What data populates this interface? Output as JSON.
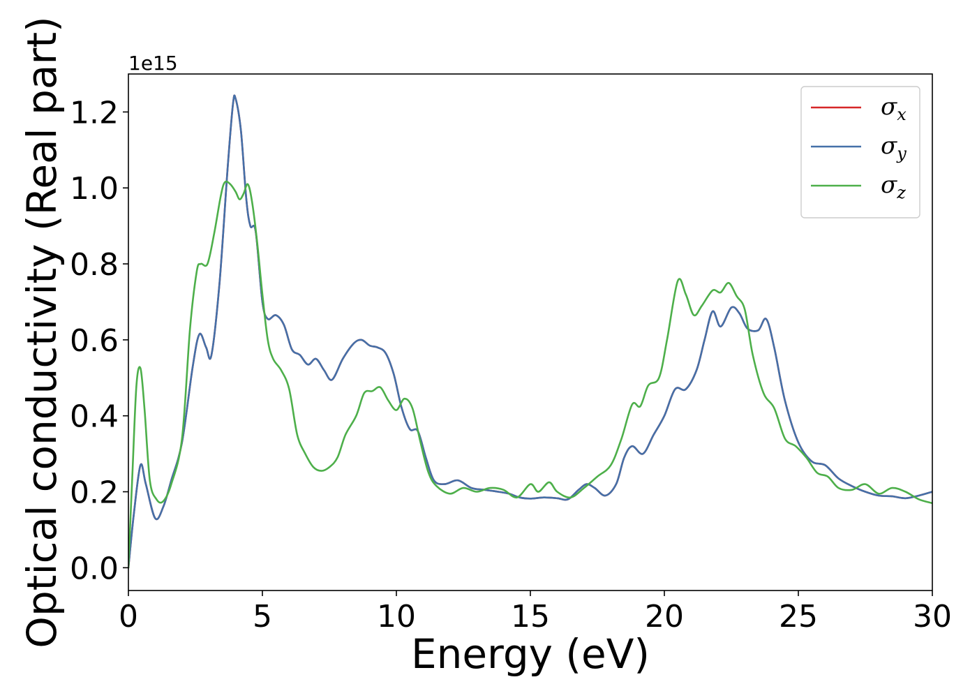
{
  "chart_data": {
    "type": "line",
    "title": "",
    "xlabel": "Energy (eV)",
    "ylabel": "Optical conductivity (Real part)",
    "y_offset_text": "1e15",
    "y_scale_factor": 1000000000000000.0,
    "xlim": [
      0,
      30
    ],
    "ylim": [
      -0.06,
      1.3
    ],
    "x_ticks": [
      0,
      5,
      10,
      15,
      20,
      25,
      30
    ],
    "y_ticks": [
      0.0,
      0.2,
      0.4,
      0.6,
      0.8,
      1.0,
      1.2
    ],
    "y_tick_labels": [
      "0.0",
      "0.2",
      "0.4",
      "0.6",
      "0.8",
      "1.0",
      "1.2"
    ],
    "grid": false,
    "legend_position": "top-right",
    "series": [
      {
        "name": "σx",
        "legend_symbol": "σ",
        "legend_subscript": "x",
        "color": "#d62728",
        "points": [
          [
            0,
            0
          ],
          [
            0.2,
            0.14
          ],
          [
            0.45,
            0.27
          ],
          [
            0.65,
            0.22
          ],
          [
            1.0,
            0.13
          ],
          [
            1.3,
            0.16
          ],
          [
            1.6,
            0.23
          ],
          [
            2.0,
            0.33
          ],
          [
            2.4,
            0.53
          ],
          [
            2.65,
            0.615
          ],
          [
            2.9,
            0.58
          ],
          [
            3.1,
            0.56
          ],
          [
            3.4,
            0.75
          ],
          [
            3.7,
            1.05
          ],
          [
            3.9,
            1.22
          ],
          [
            4.0,
            1.235
          ],
          [
            4.2,
            1.15
          ],
          [
            4.4,
            0.97
          ],
          [
            4.55,
            0.9
          ],
          [
            4.75,
            0.885
          ],
          [
            5.0,
            0.7
          ],
          [
            5.2,
            0.655
          ],
          [
            5.5,
            0.665
          ],
          [
            5.8,
            0.64
          ],
          [
            6.1,
            0.575
          ],
          [
            6.4,
            0.56
          ],
          [
            6.7,
            0.535
          ],
          [
            7.0,
            0.55
          ],
          [
            7.3,
            0.52
          ],
          [
            7.6,
            0.495
          ],
          [
            8.0,
            0.55
          ],
          [
            8.4,
            0.59
          ],
          [
            8.7,
            0.6
          ],
          [
            9.0,
            0.585
          ],
          [
            9.3,
            0.58
          ],
          [
            9.6,
            0.565
          ],
          [
            9.9,
            0.51
          ],
          [
            10.2,
            0.42
          ],
          [
            10.5,
            0.365
          ],
          [
            10.8,
            0.36
          ],
          [
            11.1,
            0.29
          ],
          [
            11.4,
            0.23
          ],
          [
            11.8,
            0.22
          ],
          [
            12.3,
            0.23
          ],
          [
            12.8,
            0.21
          ],
          [
            13.3,
            0.205
          ],
          [
            13.8,
            0.2
          ],
          [
            14.2,
            0.195
          ],
          [
            14.6,
            0.185
          ],
          [
            15.0,
            0.182
          ],
          [
            15.5,
            0.185
          ],
          [
            16.0,
            0.183
          ],
          [
            16.4,
            0.18
          ],
          [
            16.8,
            0.205
          ],
          [
            17.1,
            0.22
          ],
          [
            17.4,
            0.21
          ],
          [
            17.8,
            0.19
          ],
          [
            18.2,
            0.22
          ],
          [
            18.5,
            0.29
          ],
          [
            18.8,
            0.32
          ],
          [
            19.2,
            0.3
          ],
          [
            19.6,
            0.35
          ],
          [
            20.0,
            0.4
          ],
          [
            20.4,
            0.47
          ],
          [
            20.8,
            0.47
          ],
          [
            21.2,
            0.52
          ],
          [
            21.5,
            0.6
          ],
          [
            21.8,
            0.675
          ],
          [
            22.1,
            0.635
          ],
          [
            22.5,
            0.685
          ],
          [
            22.8,
            0.67
          ],
          [
            23.1,
            0.63
          ],
          [
            23.5,
            0.625
          ],
          [
            23.8,
            0.655
          ],
          [
            24.1,
            0.58
          ],
          [
            24.5,
            0.44
          ],
          [
            25.0,
            0.33
          ],
          [
            25.5,
            0.28
          ],
          [
            26.0,
            0.27
          ],
          [
            26.5,
            0.235
          ],
          [
            27.0,
            0.215
          ],
          [
            27.5,
            0.2
          ],
          [
            28.0,
            0.19
          ],
          [
            28.5,
            0.188
          ],
          [
            29.0,
            0.183
          ],
          [
            29.5,
            0.19
          ],
          [
            30.0,
            0.2
          ]
        ]
      },
      {
        "name": "σy",
        "legend_symbol": "σ",
        "legend_subscript": "y",
        "color": "#4470a8",
        "points": [
          [
            0,
            0
          ],
          [
            0.2,
            0.14
          ],
          [
            0.45,
            0.27
          ],
          [
            0.65,
            0.22
          ],
          [
            1.0,
            0.13
          ],
          [
            1.3,
            0.16
          ],
          [
            1.6,
            0.23
          ],
          [
            2.0,
            0.33
          ],
          [
            2.4,
            0.53
          ],
          [
            2.65,
            0.615
          ],
          [
            2.9,
            0.58
          ],
          [
            3.1,
            0.56
          ],
          [
            3.4,
            0.75
          ],
          [
            3.7,
            1.05
          ],
          [
            3.9,
            1.22
          ],
          [
            4.0,
            1.235
          ],
          [
            4.2,
            1.15
          ],
          [
            4.4,
            0.97
          ],
          [
            4.55,
            0.9
          ],
          [
            4.75,
            0.885
          ],
          [
            5.0,
            0.7
          ],
          [
            5.2,
            0.655
          ],
          [
            5.5,
            0.665
          ],
          [
            5.8,
            0.64
          ],
          [
            6.1,
            0.575
          ],
          [
            6.4,
            0.56
          ],
          [
            6.7,
            0.535
          ],
          [
            7.0,
            0.55
          ],
          [
            7.3,
            0.52
          ],
          [
            7.6,
            0.495
          ],
          [
            8.0,
            0.55
          ],
          [
            8.4,
            0.59
          ],
          [
            8.7,
            0.6
          ],
          [
            9.0,
            0.585
          ],
          [
            9.3,
            0.58
          ],
          [
            9.6,
            0.565
          ],
          [
            9.9,
            0.51
          ],
          [
            10.2,
            0.42
          ],
          [
            10.5,
            0.365
          ],
          [
            10.8,
            0.36
          ],
          [
            11.1,
            0.29
          ],
          [
            11.4,
            0.23
          ],
          [
            11.8,
            0.22
          ],
          [
            12.3,
            0.23
          ],
          [
            12.8,
            0.21
          ],
          [
            13.3,
            0.205
          ],
          [
            13.8,
            0.2
          ],
          [
            14.2,
            0.195
          ],
          [
            14.6,
            0.185
          ],
          [
            15.0,
            0.182
          ],
          [
            15.5,
            0.185
          ],
          [
            16.0,
            0.183
          ],
          [
            16.4,
            0.18
          ],
          [
            16.8,
            0.205
          ],
          [
            17.1,
            0.22
          ],
          [
            17.4,
            0.21
          ],
          [
            17.8,
            0.19
          ],
          [
            18.2,
            0.22
          ],
          [
            18.5,
            0.29
          ],
          [
            18.8,
            0.32
          ],
          [
            19.2,
            0.3
          ],
          [
            19.6,
            0.35
          ],
          [
            20.0,
            0.4
          ],
          [
            20.4,
            0.47
          ],
          [
            20.8,
            0.47
          ],
          [
            21.2,
            0.52
          ],
          [
            21.5,
            0.6
          ],
          [
            21.8,
            0.675
          ],
          [
            22.1,
            0.635
          ],
          [
            22.5,
            0.685
          ],
          [
            22.8,
            0.67
          ],
          [
            23.1,
            0.63
          ],
          [
            23.5,
            0.625
          ],
          [
            23.8,
            0.655
          ],
          [
            24.1,
            0.58
          ],
          [
            24.5,
            0.44
          ],
          [
            25.0,
            0.33
          ],
          [
            25.5,
            0.28
          ],
          [
            26.0,
            0.27
          ],
          [
            26.5,
            0.235
          ],
          [
            27.0,
            0.215
          ],
          [
            27.5,
            0.2
          ],
          [
            28.0,
            0.19
          ],
          [
            28.5,
            0.188
          ],
          [
            29.0,
            0.183
          ],
          [
            29.5,
            0.19
          ],
          [
            30.0,
            0.2
          ]
        ]
      },
      {
        "name": "σz",
        "legend_symbol": "σ",
        "legend_subscript": "z",
        "color": "#4daf4a",
        "points": [
          [
            0,
            0
          ],
          [
            0.15,
            0.25
          ],
          [
            0.3,
            0.48
          ],
          [
            0.45,
            0.525
          ],
          [
            0.6,
            0.42
          ],
          [
            0.8,
            0.23
          ],
          [
            1.05,
            0.18
          ],
          [
            1.3,
            0.175
          ],
          [
            1.6,
            0.22
          ],
          [
            2.0,
            0.34
          ],
          [
            2.3,
            0.63
          ],
          [
            2.55,
            0.78
          ],
          [
            2.7,
            0.8
          ],
          [
            2.95,
            0.8
          ],
          [
            3.2,
            0.88
          ],
          [
            3.45,
            0.98
          ],
          [
            3.6,
            1.015
          ],
          [
            3.8,
            1.01
          ],
          [
            4.0,
            0.99
          ],
          [
            4.15,
            0.97
          ],
          [
            4.3,
            0.985
          ],
          [
            4.45,
            1.01
          ],
          [
            4.6,
            0.97
          ],
          [
            4.8,
            0.86
          ],
          [
            5.0,
            0.72
          ],
          [
            5.2,
            0.6
          ],
          [
            5.4,
            0.55
          ],
          [
            5.7,
            0.52
          ],
          [
            6.0,
            0.47
          ],
          [
            6.3,
            0.35
          ],
          [
            6.6,
            0.3
          ],
          [
            6.9,
            0.265
          ],
          [
            7.2,
            0.255
          ],
          [
            7.5,
            0.265
          ],
          [
            7.8,
            0.29
          ],
          [
            8.1,
            0.35
          ],
          [
            8.5,
            0.4
          ],
          [
            8.8,
            0.46
          ],
          [
            9.1,
            0.465
          ],
          [
            9.4,
            0.475
          ],
          [
            9.7,
            0.44
          ],
          [
            10.0,
            0.415
          ],
          [
            10.3,
            0.445
          ],
          [
            10.6,
            0.42
          ],
          [
            10.9,
            0.33
          ],
          [
            11.2,
            0.25
          ],
          [
            11.5,
            0.215
          ],
          [
            12.0,
            0.195
          ],
          [
            12.5,
            0.21
          ],
          [
            13.0,
            0.2
          ],
          [
            13.5,
            0.21
          ],
          [
            14.0,
            0.205
          ],
          [
            14.5,
            0.185
          ],
          [
            15.0,
            0.22
          ],
          [
            15.3,
            0.2
          ],
          [
            15.7,
            0.225
          ],
          [
            16.0,
            0.2
          ],
          [
            16.5,
            0.185
          ],
          [
            17.0,
            0.21
          ],
          [
            17.5,
            0.24
          ],
          [
            18.0,
            0.27
          ],
          [
            18.4,
            0.34
          ],
          [
            18.8,
            0.43
          ],
          [
            19.1,
            0.425
          ],
          [
            19.4,
            0.48
          ],
          [
            19.8,
            0.5
          ],
          [
            20.1,
            0.6
          ],
          [
            20.5,
            0.755
          ],
          [
            20.8,
            0.72
          ],
          [
            21.1,
            0.665
          ],
          [
            21.4,
            0.69
          ],
          [
            21.8,
            0.73
          ],
          [
            22.1,
            0.725
          ],
          [
            22.4,
            0.75
          ],
          [
            22.7,
            0.715
          ],
          [
            23.0,
            0.68
          ],
          [
            23.3,
            0.56
          ],
          [
            23.7,
            0.46
          ],
          [
            24.1,
            0.42
          ],
          [
            24.5,
            0.34
          ],
          [
            24.9,
            0.32
          ],
          [
            25.3,
            0.29
          ],
          [
            25.7,
            0.25
          ],
          [
            26.1,
            0.24
          ],
          [
            26.5,
            0.21
          ],
          [
            27.0,
            0.205
          ],
          [
            27.5,
            0.22
          ],
          [
            28.0,
            0.195
          ],
          [
            28.5,
            0.21
          ],
          [
            29.0,
            0.2
          ],
          [
            29.5,
            0.18
          ],
          [
            30.0,
            0.17
          ]
        ]
      }
    ]
  }
}
